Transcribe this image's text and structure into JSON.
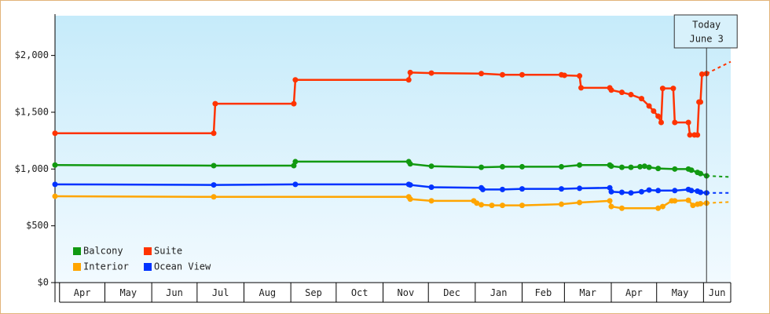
{
  "chart_data": {
    "type": "line",
    "legend": "lower left",
    "ylim": [
      0,
      2350
    ],
    "yticks": [
      {
        "value": 0,
        "label": "$0"
      },
      {
        "value": 500,
        "label": "$500"
      },
      {
        "value": 1000,
        "label": "$1,000"
      },
      {
        "value": 1500,
        "label": "$1,500"
      },
      {
        "value": 2000,
        "label": "$2,000"
      }
    ],
    "xlim": [
      -3,
      444
    ],
    "xticks": [
      {
        "value": 0,
        "label": "Apr"
      },
      {
        "value": 30,
        "label": "May"
      },
      {
        "value": 61,
        "label": "Jun"
      },
      {
        "value": 91,
        "label": "Jul"
      },
      {
        "value": 122,
        "label": "Aug"
      },
      {
        "value": 153,
        "label": "Sep"
      },
      {
        "value": 183,
        "label": "Oct"
      },
      {
        "value": 214,
        "label": "Nov"
      },
      {
        "value": 244,
        "label": "Dec"
      },
      {
        "value": 275,
        "label": "Jan"
      },
      {
        "value": 306,
        "label": "Feb"
      },
      {
        "value": 334,
        "label": "Mar"
      },
      {
        "value": 365,
        "label": "Apr"
      },
      {
        "value": 395,
        "label": "May"
      },
      {
        "value": 426,
        "label": "Jun"
      }
    ],
    "today": {
      "x": 428,
      "text": [
        "Today",
        "June 3"
      ]
    },
    "series": [
      {
        "name": "Balcony",
        "color": "#119911",
        "x": [
          -3,
          102,
          155,
          156,
          231,
          232,
          246,
          279,
          293,
          306,
          332,
          344,
          364,
          365,
          372,
          378,
          384,
          387,
          390,
          396,
          407,
          416,
          418,
          422,
          424,
          428
        ],
        "values": [
          1035,
          1030,
          1030,
          1065,
          1065,
          1045,
          1025,
          1015,
          1020,
          1020,
          1020,
          1035,
          1035,
          1025,
          1015,
          1015,
          1020,
          1025,
          1015,
          1005,
          1000,
          1000,
          990,
          970,
          960,
          940
        ],
        "forecast": {
          "x": [
            428,
            444
          ],
          "values": [
            940,
            930
          ]
        }
      },
      {
        "name": "Suite",
        "color": "#ff3300",
        "x": [
          -3,
          102,
          103,
          155,
          156,
          231,
          232,
          246,
          279,
          293,
          306,
          332,
          334,
          344,
          345,
          364,
          365,
          372,
          378,
          385,
          390,
          393,
          396,
          398,
          399,
          406,
          407,
          416,
          417,
          420,
          422,
          423,
          424,
          425,
          428
        ],
        "values": [
          1315,
          1315,
          1575,
          1575,
          1785,
          1785,
          1850,
          1845,
          1840,
          1830,
          1830,
          1830,
          1825,
          1820,
          1715,
          1715,
          1695,
          1675,
          1655,
          1620,
          1555,
          1510,
          1465,
          1410,
          1710,
          1710,
          1410,
          1410,
          1300,
          1300,
          1300,
          1590,
          1590,
          1835,
          1840
        ],
        "forecast": {
          "x": [
            428,
            444
          ],
          "values": [
            1840,
            1945
          ]
        }
      },
      {
        "name": "Interior",
        "color": "#ffa500",
        "x": [
          -3,
          102,
          231,
          232,
          246,
          274,
          276,
          279,
          286,
          293,
          306,
          332,
          344,
          364,
          365,
          372,
          396,
          399,
          405,
          407,
          416,
          419,
          422,
          424,
          428
        ],
        "values": [
          760,
          755,
          755,
          735,
          720,
          720,
          700,
          685,
          680,
          680,
          680,
          690,
          705,
          720,
          670,
          655,
          655,
          670,
          720,
          720,
          725,
          680,
          690,
          695,
          700
        ],
        "forecast": {
          "x": [
            428,
            444
          ],
          "values": [
            700,
            710
          ]
        }
      },
      {
        "name": "Ocean View",
        "color": "#0033ff",
        "x": [
          -3,
          102,
          156,
          231,
          232,
          246,
          279,
          280,
          293,
          306,
          332,
          344,
          364,
          365,
          372,
          378,
          385,
          390,
          396,
          407,
          416,
          418,
          422,
          424,
          428
        ],
        "values": [
          865,
          860,
          865,
          865,
          860,
          840,
          835,
          820,
          820,
          825,
          825,
          830,
          835,
          800,
          795,
          790,
          800,
          815,
          810,
          810,
          820,
          810,
          805,
          795,
          790
        ],
        "forecast": {
          "x": [
            428,
            444
          ],
          "values": [
            790,
            790
          ]
        }
      }
    ]
  }
}
